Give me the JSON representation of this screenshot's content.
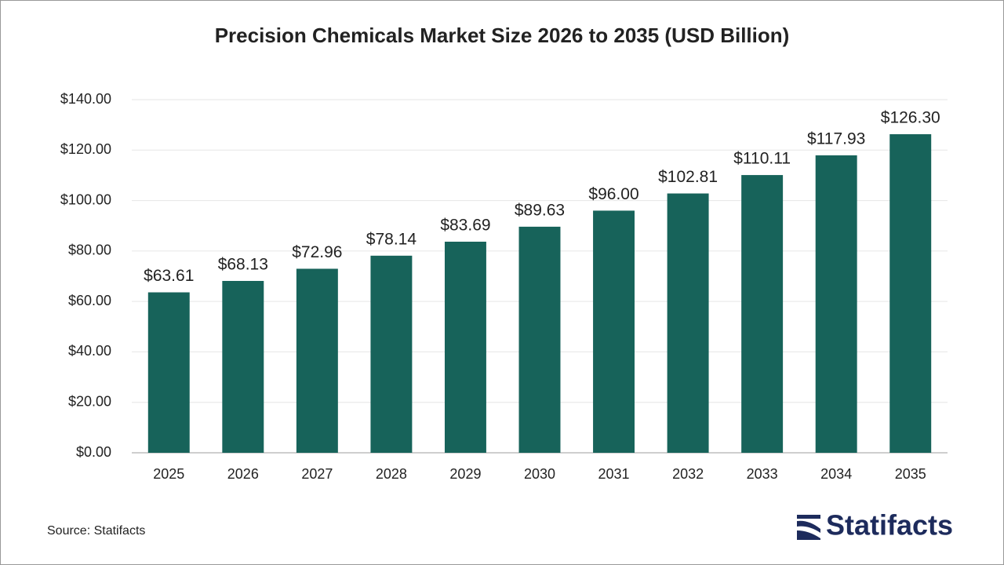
{
  "chart_data": {
    "type": "bar",
    "title": "Precision Chemicals Market Size 2026 to 2035 (USD Billion)",
    "categories": [
      "2025",
      "2026",
      "2027",
      "2028",
      "2029",
      "2030",
      "2031",
      "2032",
      "2033",
      "2034",
      "2035"
    ],
    "values": [
      63.61,
      68.13,
      72.96,
      78.14,
      83.69,
      89.63,
      96.0,
      102.81,
      110.11,
      117.93,
      126.3
    ],
    "value_labels": [
      "$63.61",
      "$68.13",
      "$72.96",
      "$78.14",
      "$83.69",
      "$89.63",
      "$96.00",
      "$102.81",
      "$110.11",
      "$117.93",
      "$126.30"
    ],
    "color": "#17635a",
    "ylim": [
      0,
      140
    ],
    "yticks": [
      {
        "value": 0,
        "label": "$0.00"
      },
      {
        "value": 20,
        "label": "$20.00"
      },
      {
        "value": 40,
        "label": "$40.00"
      },
      {
        "value": 60,
        "label": "$60.00"
      },
      {
        "value": 80,
        "label": "$80.00"
      },
      {
        "value": 100,
        "label": "$100.00"
      },
      {
        "value": 120,
        "label": "$120.00"
      },
      {
        "value": 140,
        "label": "$140.00"
      }
    ],
    "grid": true,
    "source": "Source: Statifacts",
    "logo": "Statifacts"
  }
}
